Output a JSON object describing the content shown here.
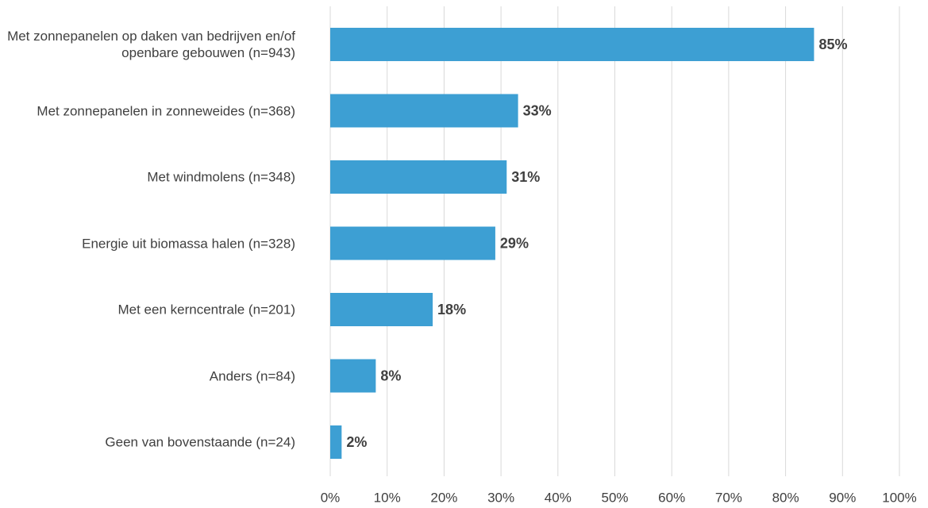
{
  "chart_data": {
    "type": "bar",
    "orientation": "horizontal",
    "categories": [
      "Met zonnepanelen op daken van bedrijven en/of openbare gebouwen (n=943)",
      "Met zonnepanelen in zonneweides (n=368)",
      "Met windmolens (n=348)",
      "Energie uit biomassa halen (n=328)",
      "Met een kerncentrale (n=201)",
      "Anders (n=84)",
      "Geen van bovenstaande (n=24)"
    ],
    "values": [
      85,
      33,
      31,
      29,
      18,
      8,
      2
    ],
    "value_labels": [
      "85%",
      "33%",
      "31%",
      "29%",
      "18%",
      "8%",
      "2%"
    ],
    "color": "#3d9fd3",
    "xlim": [
      0,
      100
    ],
    "xticks": [
      {
        "value": 0,
        "label": "0%"
      },
      {
        "value": 10,
        "label": "10%"
      },
      {
        "value": 20,
        "label": "20%"
      },
      {
        "value": 30,
        "label": "30%"
      },
      {
        "value": 40,
        "label": "40%"
      },
      {
        "value": 50,
        "label": "50%"
      },
      {
        "value": 60,
        "label": "60%"
      },
      {
        "value": 70,
        "label": "70%"
      },
      {
        "value": 80,
        "label": "80%"
      },
      {
        "value": 90,
        "label": "90%"
      },
      {
        "value": 100,
        "label": "100%"
      }
    ],
    "grid": true
  }
}
